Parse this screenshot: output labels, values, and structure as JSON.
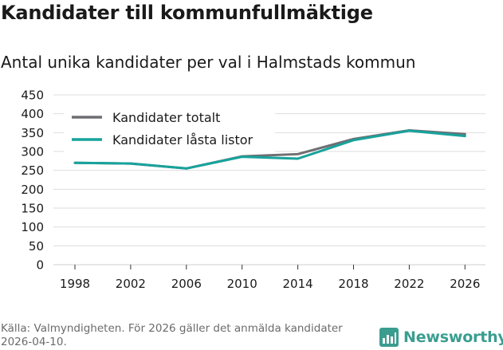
{
  "header": {
    "title": "Kandidater till kommunfullmäktige",
    "subtitle": "Antal unika kandidater per val i Halmstads kommun"
  },
  "footer": {
    "source": "Källa: Valmyndigheten. För 2026 gäller det anmälda kandidater 2026-04-10.",
    "brand": "Newsworthy"
  },
  "colors": {
    "series_total": "#6e6e73",
    "series_locked": "#17a39b",
    "grid": "#dedede",
    "brand": "#3a9d90"
  },
  "chart_data": {
    "type": "line",
    "title": "Antal unika kandidater per val i Halmstads kommun",
    "xlabel": "",
    "ylabel": "",
    "x": [
      1998,
      2002,
      2006,
      2010,
      2014,
      2018,
      2022,
      2026
    ],
    "ylim": [
      0,
      450
    ],
    "yticks": [
      0,
      50,
      100,
      150,
      200,
      250,
      300,
      350,
      400,
      450
    ],
    "grid": true,
    "legend": "top-left",
    "series": [
      {
        "name": "Kandidater totalt",
        "color": "#6e6e73",
        "values": [
          270,
          268,
          255,
          287,
          293,
          333,
          356,
          346
        ]
      },
      {
        "name": "Kandidater låsta listor",
        "color": "#17a39b",
        "values": [
          270,
          268,
          255,
          286,
          281,
          330,
          355,
          341
        ]
      }
    ]
  }
}
